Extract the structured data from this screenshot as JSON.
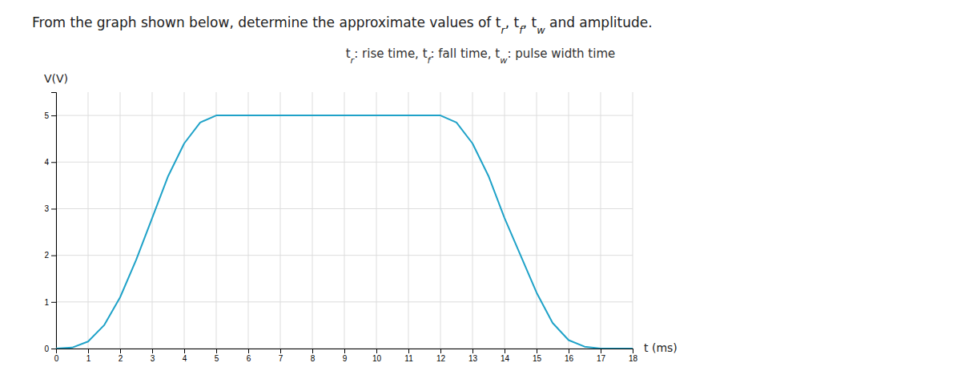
{
  "chart_data": {
    "type": "line",
    "title": "From the graph shown below, determine the approximate values of tr, tf, tw and amplitude.",
    "subtitle": "tr: rise time, tf: fall time, tw: pulse width time",
    "xlabel": "t (ms)",
    "ylabel": "V(V)",
    "x": [
      0,
      0.5,
      1.0,
      1.5,
      2.0,
      2.5,
      3.0,
      3.5,
      4.0,
      4.5,
      5.0,
      5.5,
      6.0,
      7.0,
      8.0,
      9.0,
      10.0,
      11.0,
      12.0,
      12.5,
      13.0,
      13.5,
      14.0,
      14.5,
      15.0,
      15.5,
      16.0,
      16.5,
      17.0,
      18.0
    ],
    "values": [
      0,
      0.02,
      0.15,
      0.5,
      1.1,
      1.9,
      2.8,
      3.7,
      4.4,
      4.85,
      5.0,
      5.0,
      5.0,
      5.0,
      5.0,
      5.0,
      5.0,
      5.0,
      5.0,
      4.85,
      4.4,
      3.7,
      2.8,
      2.0,
      1.2,
      0.55,
      0.18,
      0.04,
      0.0,
      0.0
    ],
    "color": "#1fa2c8",
    "xlim": [
      0,
      18
    ],
    "ylim": [
      0,
      5.5
    ],
    "xticks": [
      0,
      1,
      2,
      3,
      4,
      5,
      6,
      7,
      8,
      9,
      10,
      11,
      12,
      13,
      14,
      15,
      16,
      17,
      18
    ],
    "yticks": [
      0,
      1,
      2,
      3,
      4,
      5
    ],
    "grid": true
  }
}
